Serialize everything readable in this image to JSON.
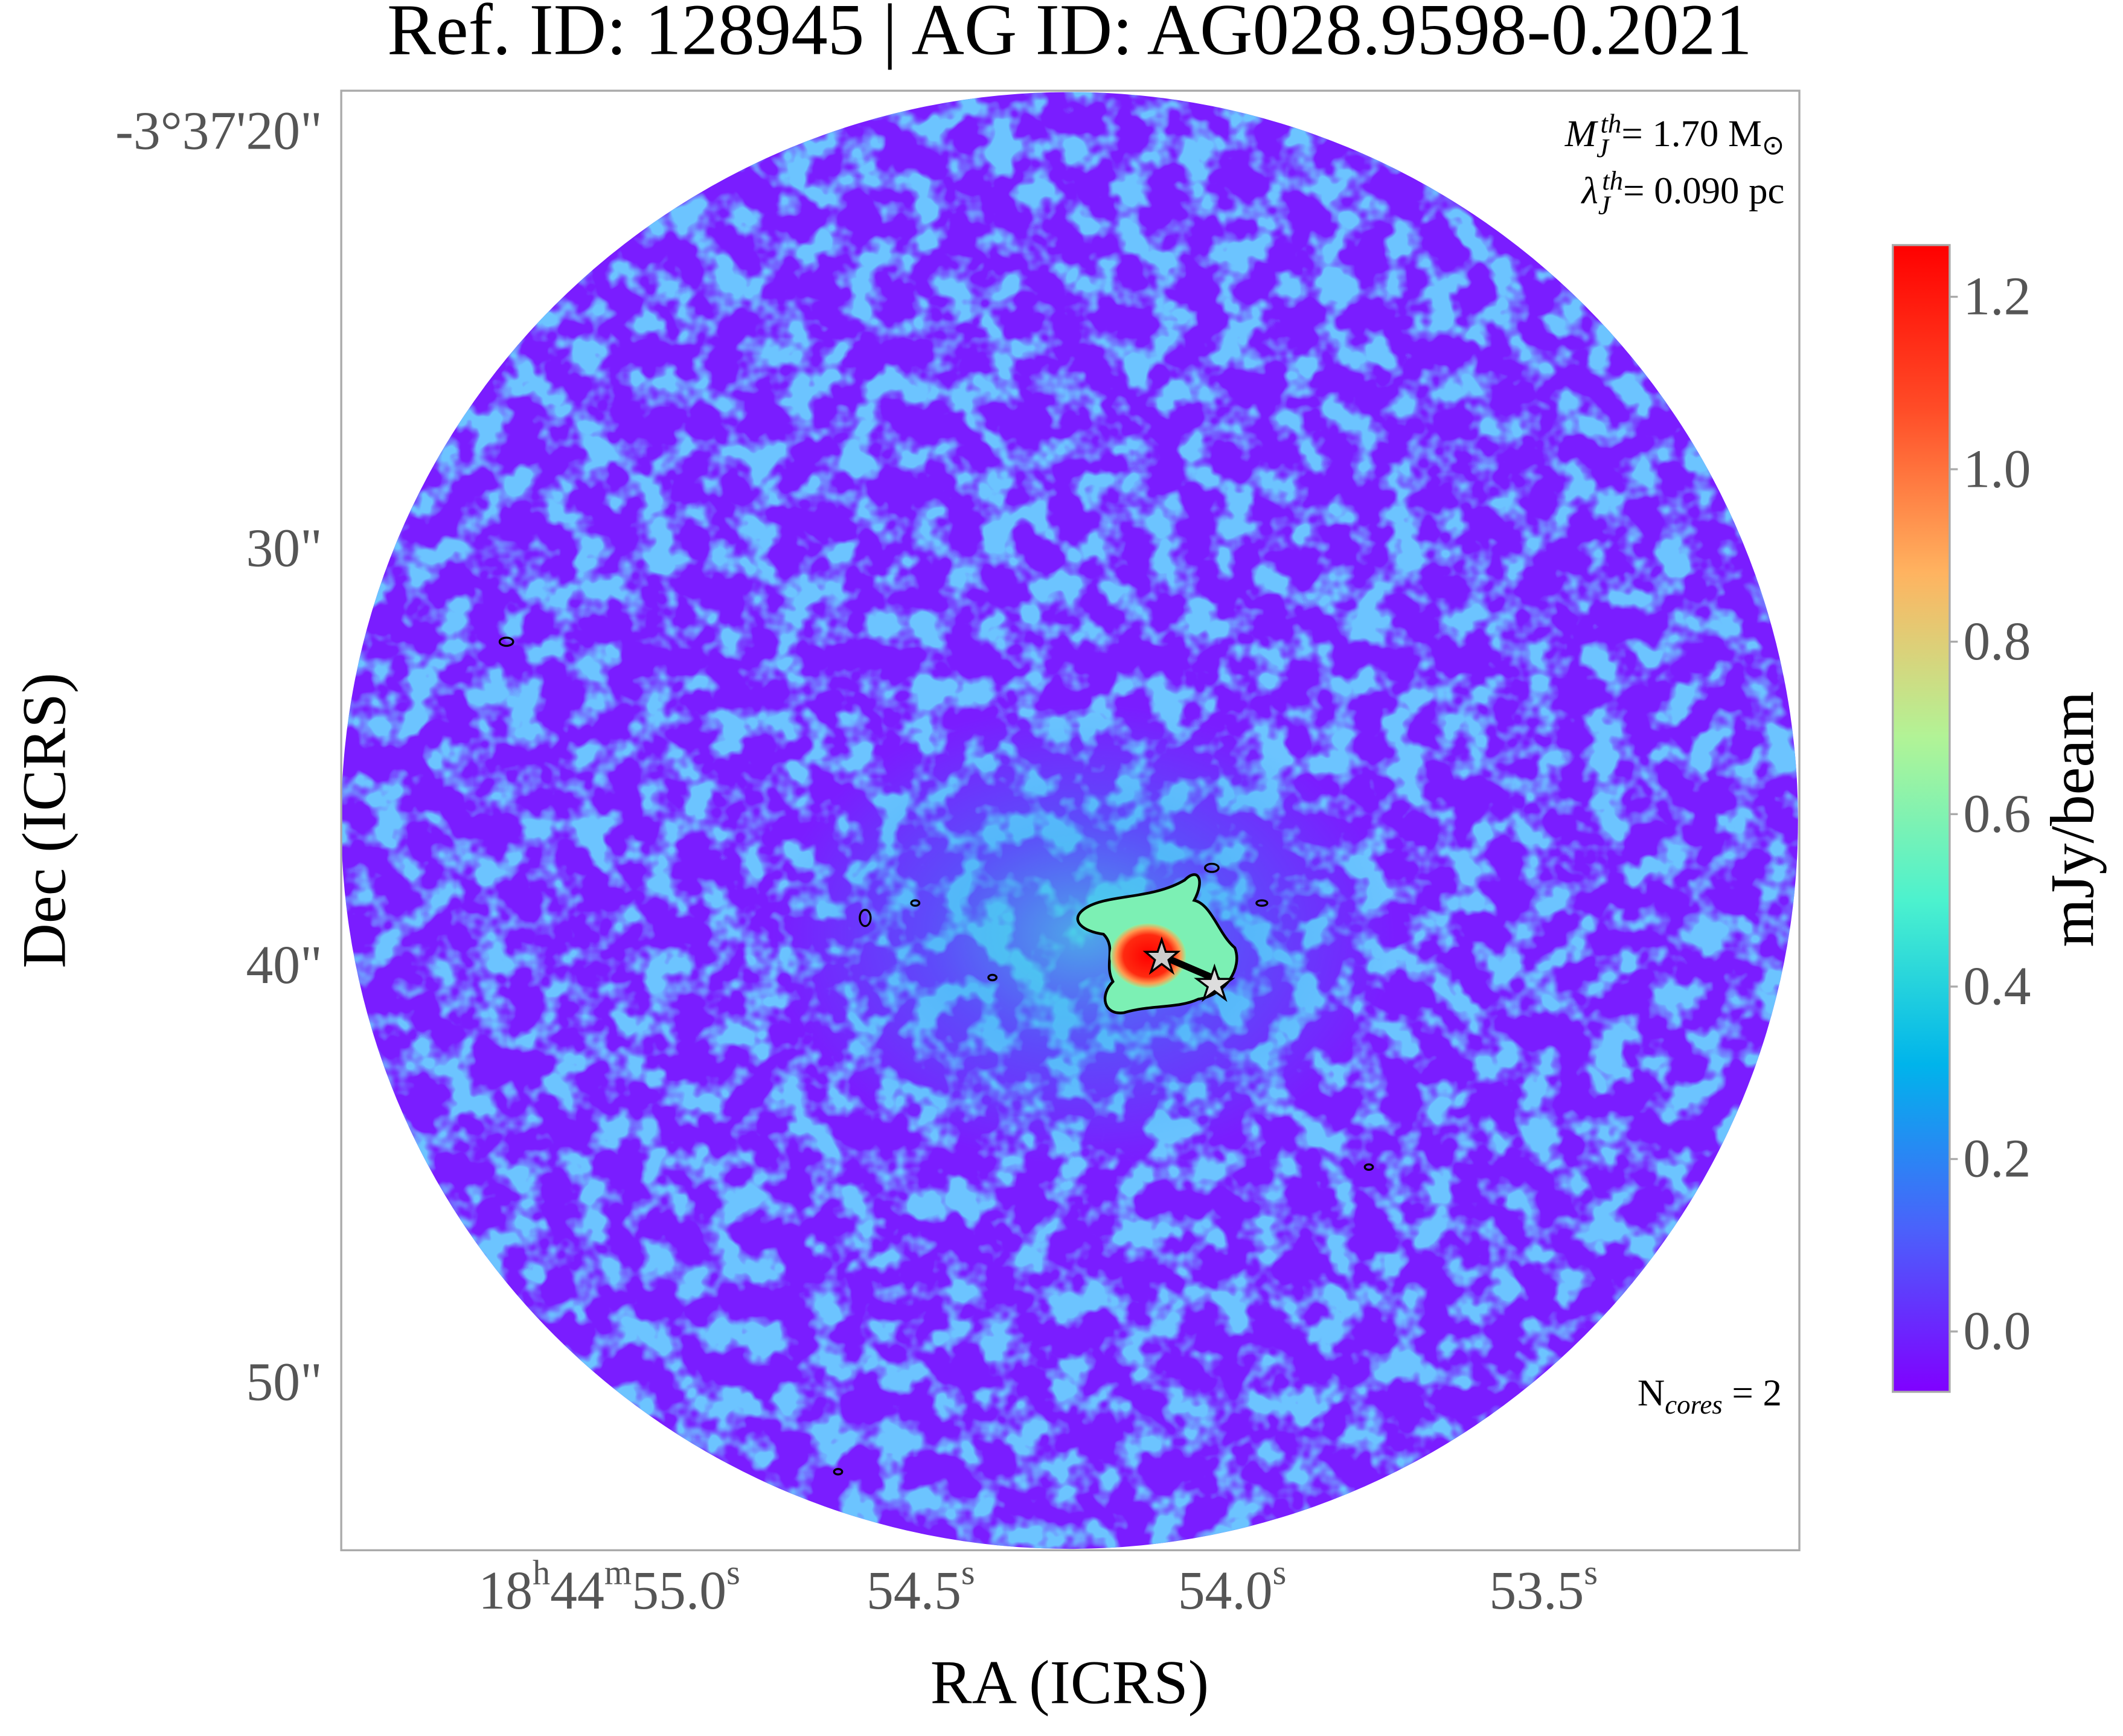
{
  "chart_data": {
    "type": "image",
    "title": "Ref. ID: 128945 | AG ID: AG028.9598-0.2021",
    "x_label": "RA (ICRS)",
    "y_label": "Dec (ICRS)",
    "xticks": [
      [
        "18",
        "h",
        "44",
        "m",
        "55.0",
        "s"
      ],
      [
        "54.5",
        "s"
      ],
      [
        "54.0",
        "s"
      ],
      [
        "53.5",
        "s"
      ]
    ],
    "yticks": [
      "-3°37'20\"",
      "30\"",
      "40\"",
      "50\""
    ],
    "annotations": {
      "mass": [
        "M",
        "J",
        "th",
        "= 1.70 M",
        "⊙"
      ],
      "length": [
        "λ",
        "J",
        "th",
        "= 0.090 pc"
      ],
      "cores": [
        "N",
        "cores",
        " = 2"
      ]
    },
    "colorbar": {
      "label": "mJy/beam",
      "lim": [
        -0.07,
        1.26
      ],
      "ticks": [
        {
          "value": 0,
          "label": "0.0"
        },
        0.2,
        0.4,
        0.6,
        0.8,
        {
          "value": 1,
          "label": "1.0"
        },
        1.2
      ],
      "colors": [
        "#8000ff",
        "#4a62fb",
        "#00b4eb",
        "#4cf2ce",
        "#b2f396",
        "#ffb360",
        "#ff4c27",
        "#ff0000"
      ]
    }
  }
}
